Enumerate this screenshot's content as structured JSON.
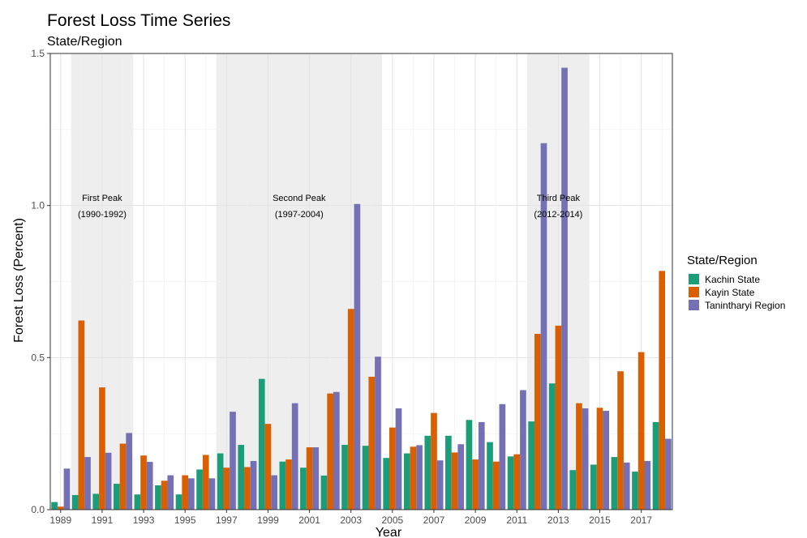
{
  "chart_data": {
    "type": "bar",
    "title": "Forest Loss Time Series",
    "subtitle": "State/Region",
    "xlabel": "Year",
    "ylabel": "Forest Loss (Percent)",
    "ylim": [
      0,
      1.5
    ],
    "yticks": [
      "0.0",
      "0.5",
      "1.0",
      "1.5"
    ],
    "xticks": [
      "1989",
      "1991",
      "1993",
      "1995",
      "1997",
      "1999",
      "2001",
      "2003",
      "2005",
      "2007",
      "2009",
      "2011",
      "2013",
      "2015",
      "2017"
    ],
    "categories": [
      1989,
      1990,
      1991,
      1992,
      1993,
      1994,
      1995,
      1996,
      1997,
      1998,
      1999,
      2000,
      2001,
      2002,
      2003,
      2004,
      2005,
      2006,
      2007,
      2008,
      2009,
      2010,
      2011,
      2012,
      2013,
      2014,
      2015,
      2016,
      2017,
      2018
    ],
    "legend": {
      "title": "State/Region",
      "position": "right"
    },
    "grid": true,
    "series": [
      {
        "name": "Kachin State",
        "color": "#1b9e77",
        "values": [
          0.025,
          0.048,
          0.052,
          0.085,
          0.05,
          0.08,
          0.05,
          0.132,
          0.185,
          0.213,
          0.43,
          0.158,
          0.138,
          0.112,
          0.213,
          0.21,
          0.17,
          0.185,
          0.243,
          0.243,
          0.295,
          0.222,
          0.175,
          0.29,
          0.415,
          0.13,
          0.148,
          0.173,
          0.125,
          0.288
        ]
      },
      {
        "name": "Kayin State",
        "color": "#d95f02",
        "values": [
          0.01,
          0.622,
          0.402,
          0.217,
          0.178,
          0.095,
          0.113,
          0.18,
          0.138,
          0.14,
          0.282,
          0.165,
          0.205,
          0.382,
          0.66,
          0.437,
          0.27,
          0.207,
          0.318,
          0.188,
          0.165,
          0.158,
          0.182,
          0.578,
          0.605,
          0.35,
          0.335,
          0.455,
          0.518,
          0.785
        ]
      },
      {
        "name": "Tanintharyi Region",
        "color": "#7570b3",
        "values": [
          0.135,
          0.173,
          0.187,
          0.252,
          0.157,
          0.113,
          0.103,
          0.103,
          0.322,
          0.16,
          0.113,
          0.35,
          0.205,
          0.387,
          1.005,
          0.503,
          0.333,
          0.212,
          0.162,
          0.215,
          0.288,
          0.347,
          0.393,
          1.205,
          1.453,
          0.333,
          0.325,
          0.155,
          0.16,
          0.233
        ]
      }
    ],
    "annotations": [
      {
        "label": "First Peak",
        "period": "(1990-1992)",
        "start_year": 1990,
        "end_year": 1992
      },
      {
        "label": "Second Peak",
        "period": "(1997-2004)",
        "start_year": 1997,
        "end_year": 2004
      },
      {
        "label": "Third Peak",
        "period": "(2012-2014)",
        "start_year": 2012,
        "end_year": 2014
      }
    ]
  }
}
